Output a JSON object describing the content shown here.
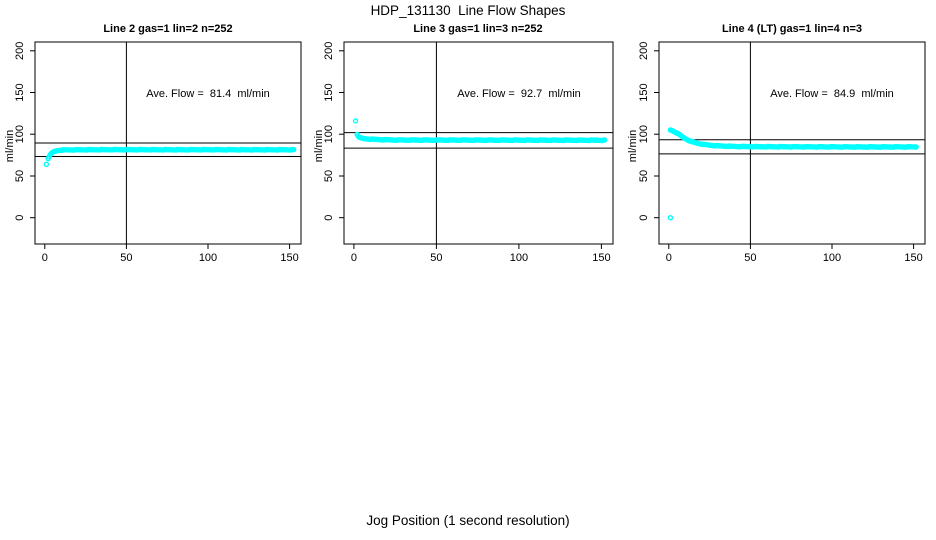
{
  "figure": {
    "title": "HDP_131130  Line Flow Shapes",
    "xlabel": "Jog Position (1 second resolution)",
    "background": "#FFFFFF",
    "axis_color": "#000000",
    "marker_color": "#00FFFF"
  },
  "chart_data": [
    {
      "type": "scatter",
      "title": "Line 2 gas=1 lin=2 n=252",
      "annotation": "Ave. Flow =  81.4  ml/min",
      "ave_flow_ml_min": 81.4,
      "ylabel": "ml/min",
      "xlim": [
        -6,
        157
      ],
      "ylim": [
        -31.5,
        210.5
      ],
      "xticks": [
        0,
        50,
        100,
        150
      ],
      "yticks": [
        0,
        50,
        100,
        150,
        200
      ],
      "ref_vline_x": 50,
      "ref_hlines": [
        89.5,
        73.3
      ],
      "outlier_points": [
        [
          1,
          64
        ]
      ],
      "series_keypoints": [
        [
          2,
          71
        ],
        [
          3,
          74.5
        ],
        [
          4,
          77
        ],
        [
          5,
          78.5
        ],
        [
          6,
          79.5
        ],
        [
          8,
          80.5
        ],
        [
          10,
          81
        ],
        [
          15,
          81.3
        ],
        [
          25,
          81.4
        ],
        [
          40,
          81.5
        ],
        [
          60,
          81.5
        ],
        [
          80,
          81.4
        ],
        [
          100,
          81.5
        ],
        [
          120,
          81.4
        ],
        [
          153,
          81.4
        ]
      ],
      "x_end": 153
    },
    {
      "type": "scatter",
      "title": "Line 3 gas=1 lin=3 n=252",
      "annotation": "Ave. Flow =  92.7  ml/min",
      "ave_flow_ml_min": 92.7,
      "ylabel": "ml/min",
      "xlim": [
        -6,
        157
      ],
      "ylim": [
        -31.5,
        210.5
      ],
      "xticks": [
        0,
        50,
        100,
        150
      ],
      "yticks": [
        0,
        50,
        100,
        150,
        200
      ],
      "ref_vline_x": 50,
      "ref_hlines": [
        102.0,
        83.4
      ],
      "outlier_points": [
        [
          1,
          116
        ]
      ],
      "series_keypoints": [
        [
          2,
          100
        ],
        [
          3,
          96.5
        ],
        [
          4,
          95.5
        ],
        [
          6,
          94.8
        ],
        [
          9,
          94.2
        ],
        [
          13,
          93.8
        ],
        [
          18,
          93.4
        ],
        [
          25,
          93.1
        ],
        [
          35,
          93
        ],
        [
          60,
          93
        ],
        [
          100,
          92.9
        ],
        [
          152,
          92.8
        ]
      ],
      "x_end": 152
    },
    {
      "type": "scatter",
      "title": "Line 4 (LT) gas=1 lin=4 n=3",
      "annotation": "Ave. Flow =  84.9  ml/min",
      "ave_flow_ml_min": 84.9,
      "ylabel": "ml/min",
      "xlim": [
        -6,
        157
      ],
      "ylim": [
        -31.5,
        210.5
      ],
      "xticks": [
        0,
        50,
        100,
        150
      ],
      "yticks": [
        0,
        50,
        100,
        150,
        200
      ],
      "ref_vline_x": 50,
      "ref_hlines": [
        93.4,
        76.4
      ],
      "outlier_points": [
        [
          1,
          0
        ]
      ],
      "series_keypoints": [
        [
          1,
          105
        ],
        [
          2,
          104.5
        ],
        [
          3,
          103.5
        ],
        [
          4,
          102.5
        ],
        [
          5,
          101.5
        ],
        [
          6,
          100.2
        ],
        [
          7,
          98.8
        ],
        [
          8,
          97.4
        ],
        [
          9,
          96
        ],
        [
          10,
          94.8
        ],
        [
          12,
          92.8
        ],
        [
          14,
          91.2
        ],
        [
          16,
          90
        ],
        [
          18,
          89
        ],
        [
          20,
          88.2
        ],
        [
          23,
          87.3
        ],
        [
          26,
          86.7
        ],
        [
          30,
          86.1
        ],
        [
          35,
          85.7
        ],
        [
          40,
          85.4
        ],
        [
          50,
          85.1
        ],
        [
          65,
          85
        ],
        [
          85,
          84.9
        ],
        [
          110,
          84.8
        ],
        [
          152,
          84.8
        ]
      ],
      "x_end": 152
    }
  ]
}
